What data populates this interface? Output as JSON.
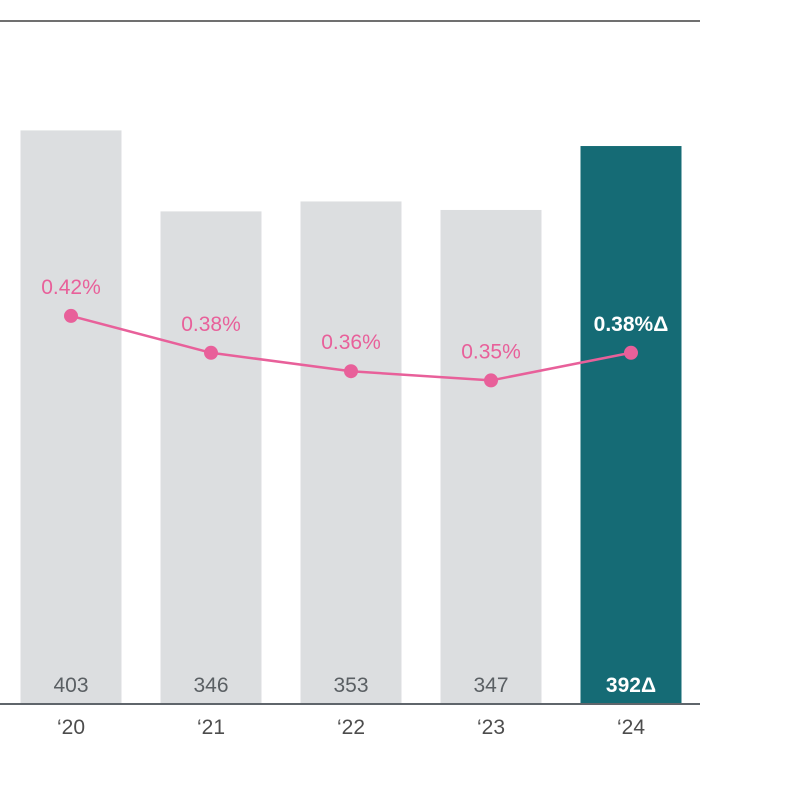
{
  "chart_data": {
    "type": "bar",
    "categories": [
      "‘20",
      "‘21",
      "‘22",
      "‘23",
      "‘24"
    ],
    "series": [
      {
        "type": "bar",
        "values": [
          403,
          346,
          353,
          347,
          392
        ],
        "labels": [
          "403",
          "346",
          "353",
          "347",
          "392Δ"
        ],
        "highlight_index": 4
      },
      {
        "type": "line",
        "values": [
          0.42,
          0.38,
          0.36,
          0.35,
          0.38
        ],
        "labels": [
          "0.42%",
          "0.38%",
          "0.36%",
          "0.35%",
          "0.38%Δ"
        ]
      }
    ],
    "bar_ylim": [
      0,
      480
    ],
    "line_ylim": [
      0.0,
      0.74
    ],
    "grid": false,
    "colors": {
      "bar": "#dcdee0",
      "bar_highlight": "#156b75",
      "line": "#e8609a",
      "bar_label": "#5a5f63",
      "bar_label_highlight": "#ffffff",
      "axis": "#5f656b",
      "top_rule": "#1a1a1a"
    }
  }
}
